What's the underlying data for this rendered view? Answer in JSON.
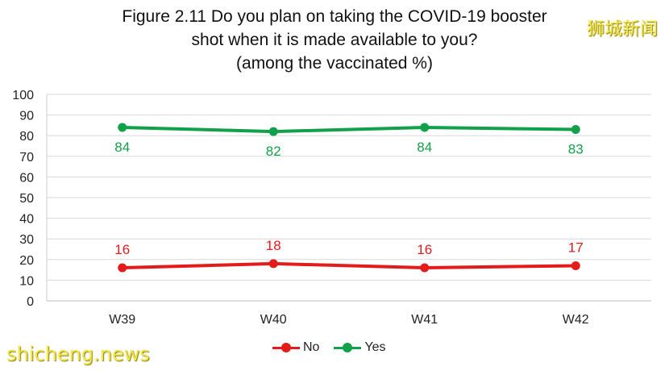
{
  "title_lines": [
    "Figure 2.11 Do you plan on taking the COVID-19 booster",
    "shot when it is made available to you?",
    "(among the vaccinated %)"
  ],
  "watermarks": {
    "top_right": "狮城新闻",
    "bottom_left": "shicheng.news"
  },
  "chart_data": {
    "type": "line",
    "title": "Figure 2.11 Do you plan on taking the COVID-19 booster shot when it is made available to you? (among the vaccinated %)",
    "categories": [
      "W39",
      "W40",
      "W41",
      "W42"
    ],
    "ylim": [
      0,
      100
    ],
    "yticks": [
      0,
      10,
      20,
      30,
      40,
      50,
      60,
      70,
      80,
      90,
      100
    ],
    "grid": true,
    "legend": "bottom",
    "series": [
      {
        "name": "No",
        "values": [
          16,
          18,
          16,
          17
        ],
        "color": "#e31b1b"
      },
      {
        "name": "Yes",
        "values": [
          84,
          82,
          84,
          83
        ],
        "color": "#12a14a"
      }
    ]
  }
}
